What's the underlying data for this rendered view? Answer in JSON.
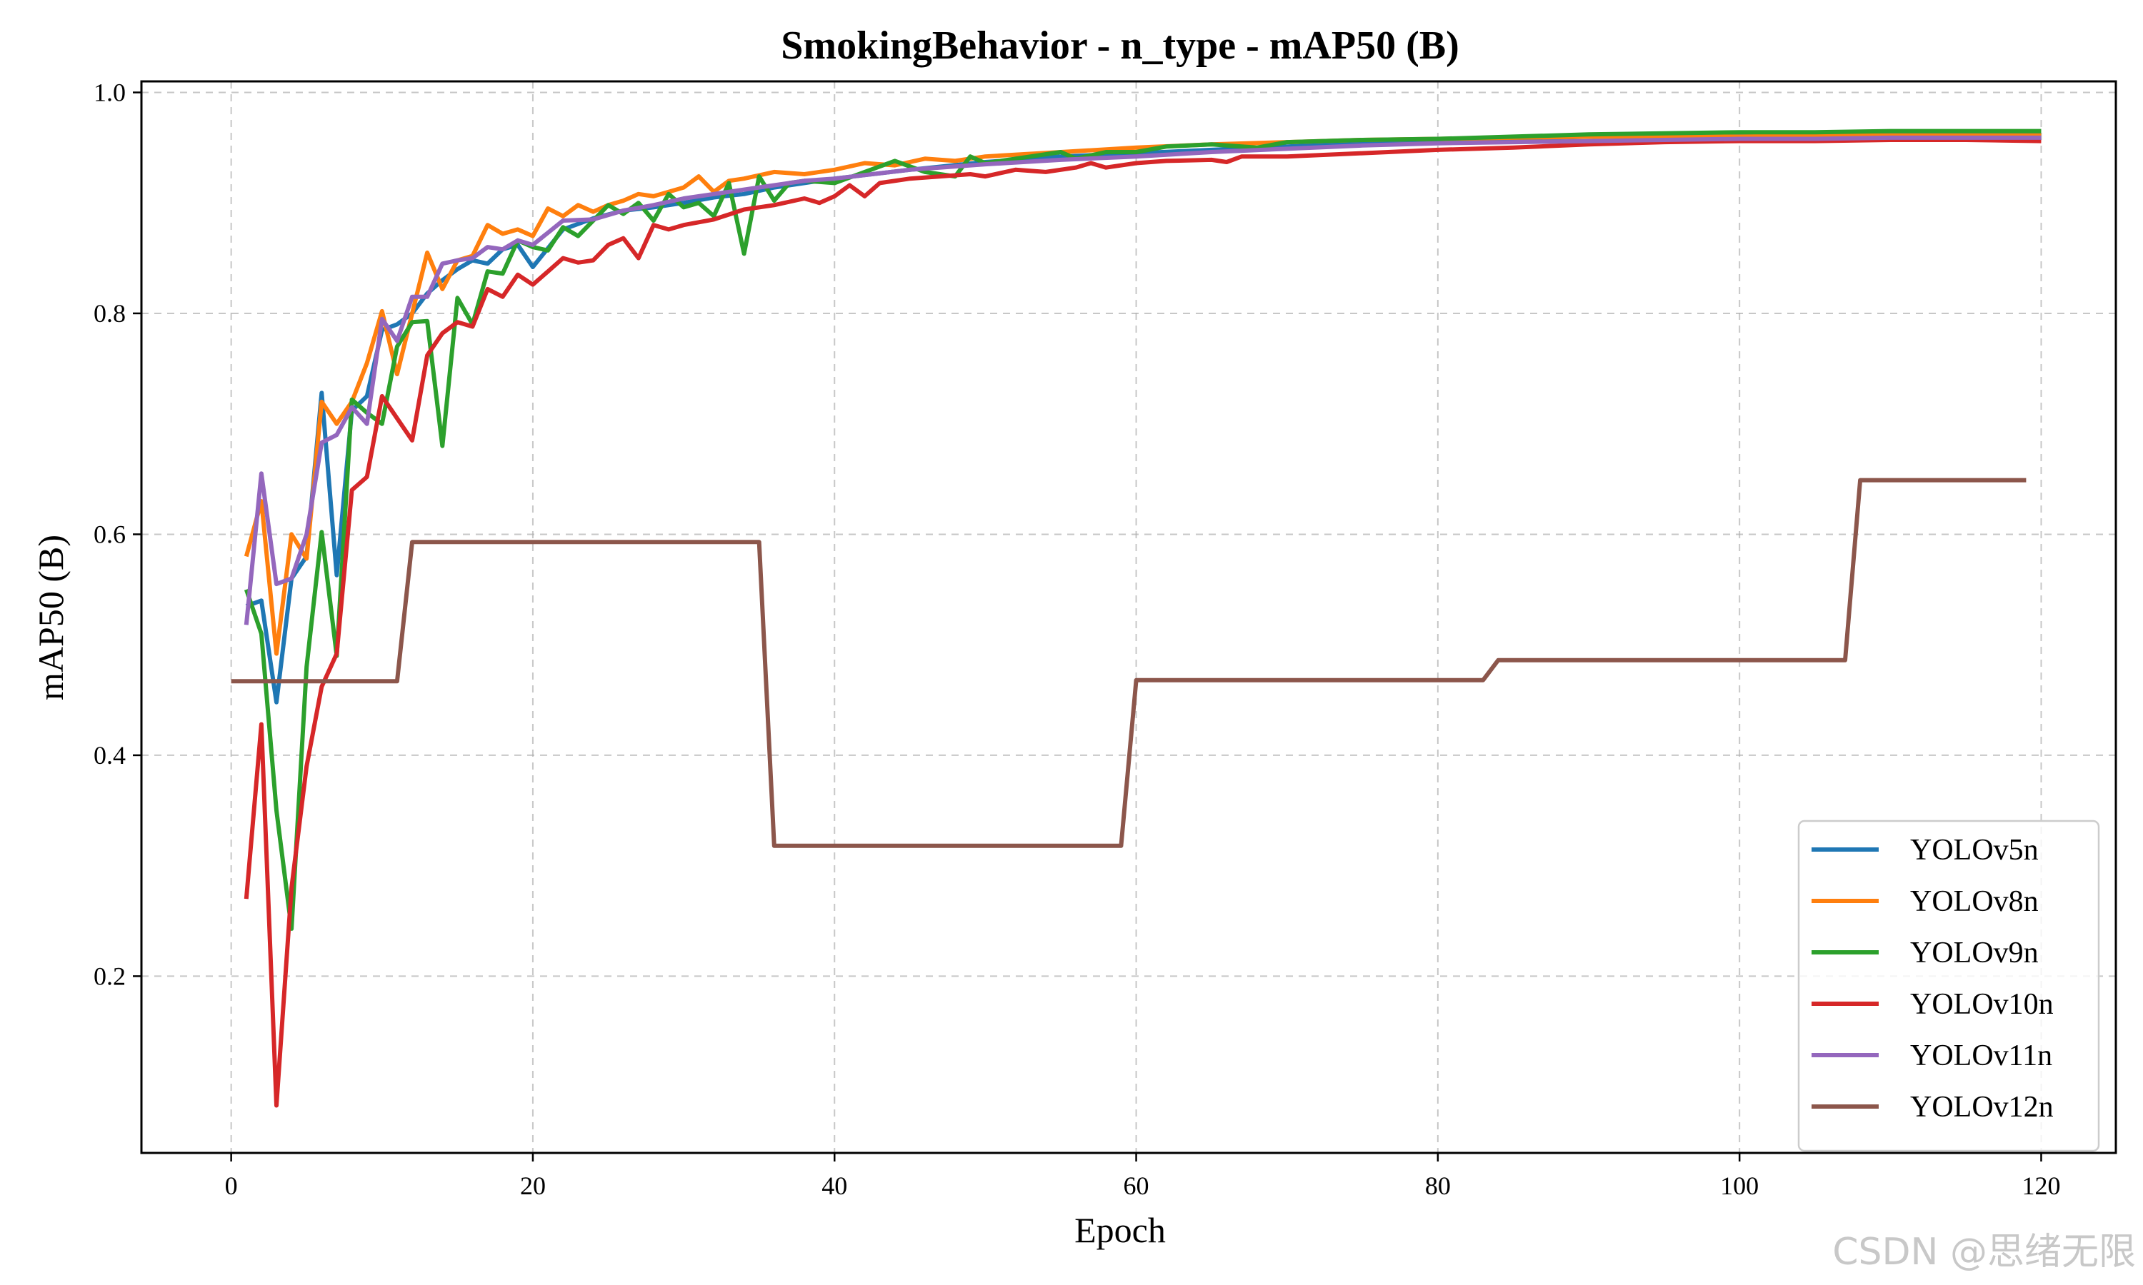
{
  "watermark": "CSDN @思绪无限",
  "chart_data": {
    "type": "line",
    "title": "SmokingBehavior - n_type - mAP50 (B)",
    "xlabel": "Epoch",
    "ylabel": "mAP50 (B)",
    "xlim": [
      -5.95,
      124.95
    ],
    "ylim": [
      0.04,
      1.01
    ],
    "xticks": [
      0,
      20,
      40,
      60,
      80,
      100,
      120
    ],
    "yticks": [
      0.2,
      0.4,
      0.6,
      0.8,
      1.0
    ],
    "grid": true,
    "legend_position": "lower-right",
    "series": [
      {
        "name": "YOLOv5n",
        "color": "#1f77b4",
        "points": [
          [
            1,
            0.535
          ],
          [
            2,
            0.54
          ],
          [
            3,
            0.448
          ],
          [
            4,
            0.56
          ],
          [
            5,
            0.58
          ],
          [
            6,
            0.728
          ],
          [
            7,
            0.563
          ],
          [
            8,
            0.712
          ],
          [
            9,
            0.725
          ],
          [
            10,
            0.785
          ],
          [
            11,
            0.79
          ],
          [
            12,
            0.8
          ],
          [
            13,
            0.818
          ],
          [
            14,
            0.83
          ],
          [
            15,
            0.84
          ],
          [
            16,
            0.848
          ],
          [
            17,
            0.845
          ],
          [
            18,
            0.858
          ],
          [
            19,
            0.862
          ],
          [
            20,
            0.842
          ],
          [
            22,
            0.876
          ],
          [
            24,
            0.886
          ],
          [
            26,
            0.893
          ],
          [
            28,
            0.896
          ],
          [
            30,
            0.9
          ],
          [
            32,
            0.905
          ],
          [
            34,
            0.908
          ],
          [
            36,
            0.914
          ],
          [
            38,
            0.918
          ],
          [
            40,
            0.922
          ],
          [
            45,
            0.93
          ],
          [
            50,
            0.937
          ],
          [
            55,
            0.942
          ],
          [
            60,
            0.945
          ],
          [
            65,
            0.948
          ],
          [
            70,
            0.951
          ],
          [
            75,
            0.954
          ],
          [
            80,
            0.956
          ],
          [
            85,
            0.958
          ],
          [
            90,
            0.96
          ],
          [
            95,
            0.961
          ],
          [
            100,
            0.962
          ],
          [
            105,
            0.962
          ],
          [
            110,
            0.963
          ],
          [
            115,
            0.963
          ],
          [
            120,
            0.963
          ]
        ]
      },
      {
        "name": "YOLOv8n",
        "color": "#ff7f0e",
        "points": [
          [
            1,
            0.58
          ],
          [
            2,
            0.63
          ],
          [
            3,
            0.492
          ],
          [
            4,
            0.6
          ],
          [
            5,
            0.578
          ],
          [
            6,
            0.72
          ],
          [
            7,
            0.7
          ],
          [
            8,
            0.72
          ],
          [
            9,
            0.755
          ],
          [
            10,
            0.802
          ],
          [
            11,
            0.745
          ],
          [
            12,
            0.8
          ],
          [
            13,
            0.855
          ],
          [
            14,
            0.822
          ],
          [
            15,
            0.848
          ],
          [
            16,
            0.852
          ],
          [
            17,
            0.88
          ],
          [
            18,
            0.872
          ],
          [
            19,
            0.876
          ],
          [
            20,
            0.87
          ],
          [
            21,
            0.895
          ],
          [
            22,
            0.888
          ],
          [
            23,
            0.898
          ],
          [
            24,
            0.892
          ],
          [
            25,
            0.898
          ],
          [
            26,
            0.902
          ],
          [
            27,
            0.908
          ],
          [
            28,
            0.906
          ],
          [
            30,
            0.914
          ],
          [
            31,
            0.924
          ],
          [
            32,
            0.91
          ],
          [
            33,
            0.92
          ],
          [
            34,
            0.922
          ],
          [
            36,
            0.928
          ],
          [
            38,
            0.926
          ],
          [
            40,
            0.93
          ],
          [
            42,
            0.936
          ],
          [
            44,
            0.934
          ],
          [
            46,
            0.94
          ],
          [
            48,
            0.938
          ],
          [
            50,
            0.942
          ],
          [
            55,
            0.946
          ],
          [
            60,
            0.95
          ],
          [
            65,
            0.953
          ],
          [
            70,
            0.955
          ],
          [
            75,
            0.957
          ],
          [
            80,
            0.958
          ],
          [
            85,
            0.959
          ],
          [
            90,
            0.96
          ],
          [
            95,
            0.96
          ],
          [
            100,
            0.96
          ],
          [
            105,
            0.961
          ],
          [
            110,
            0.961
          ],
          [
            115,
            0.961
          ],
          [
            120,
            0.961
          ]
        ]
      },
      {
        "name": "YOLOv9n",
        "color": "#2ca02c",
        "points": [
          [
            1,
            0.55
          ],
          [
            2,
            0.51
          ],
          [
            3,
            0.35
          ],
          [
            4,
            0.243
          ],
          [
            5,
            0.48
          ],
          [
            6,
            0.602
          ],
          [
            7,
            0.49
          ],
          [
            8,
            0.722
          ],
          [
            9,
            0.71
          ],
          [
            10,
            0.7
          ],
          [
            11,
            0.77
          ],
          [
            12,
            0.792
          ],
          [
            13,
            0.793
          ],
          [
            14,
            0.68
          ],
          [
            15,
            0.814
          ],
          [
            16,
            0.79
          ],
          [
            17,
            0.838
          ],
          [
            18,
            0.836
          ],
          [
            19,
            0.866
          ],
          [
            20,
            0.86
          ],
          [
            21,
            0.857
          ],
          [
            22,
            0.878
          ],
          [
            23,
            0.87
          ],
          [
            24,
            0.884
          ],
          [
            25,
            0.898
          ],
          [
            26,
            0.89
          ],
          [
            27,
            0.9
          ],
          [
            28,
            0.884
          ],
          [
            29,
            0.908
          ],
          [
            30,
            0.896
          ],
          [
            31,
            0.9
          ],
          [
            32,
            0.888
          ],
          [
            33,
            0.918
          ],
          [
            34,
            0.854
          ],
          [
            35,
            0.924
          ],
          [
            36,
            0.902
          ],
          [
            37,
            0.918
          ],
          [
            38,
            0.92
          ],
          [
            40,
            0.918
          ],
          [
            42,
            0.928
          ],
          [
            44,
            0.938
          ],
          [
            46,
            0.928
          ],
          [
            48,
            0.924
          ],
          [
            49,
            0.942
          ],
          [
            50,
            0.936
          ],
          [
            52,
            0.94
          ],
          [
            55,
            0.946
          ],
          [
            56,
            0.94
          ],
          [
            58,
            0.946
          ],
          [
            60,
            0.946
          ],
          [
            62,
            0.951
          ],
          [
            65,
            0.953
          ],
          [
            68,
            0.95
          ],
          [
            70,
            0.955
          ],
          [
            75,
            0.957
          ],
          [
            80,
            0.958
          ],
          [
            85,
            0.96
          ],
          [
            90,
            0.962
          ],
          [
            95,
            0.963
          ],
          [
            100,
            0.964
          ],
          [
            105,
            0.964
          ],
          [
            110,
            0.965
          ],
          [
            115,
            0.965
          ],
          [
            120,
            0.965
          ]
        ]
      },
      {
        "name": "YOLOv10n",
        "color": "#d62728",
        "points": [
          [
            1,
            0.27
          ],
          [
            2,
            0.428
          ],
          [
            3,
            0.083
          ],
          [
            4,
            0.28
          ],
          [
            5,
            0.39
          ],
          [
            6,
            0.462
          ],
          [
            7,
            0.492
          ],
          [
            8,
            0.64
          ],
          [
            9,
            0.652
          ],
          [
            10,
            0.725
          ],
          [
            11,
            0.705
          ],
          [
            12,
            0.685
          ],
          [
            13,
            0.762
          ],
          [
            14,
            0.782
          ],
          [
            15,
            0.792
          ],
          [
            16,
            0.788
          ],
          [
            17,
            0.822
          ],
          [
            18,
            0.815
          ],
          [
            19,
            0.835
          ],
          [
            20,
            0.826
          ],
          [
            21,
            0.838
          ],
          [
            22,
            0.85
          ],
          [
            23,
            0.846
          ],
          [
            24,
            0.848
          ],
          [
            25,
            0.862
          ],
          [
            26,
            0.868
          ],
          [
            27,
            0.85
          ],
          [
            28,
            0.88
          ],
          [
            29,
            0.876
          ],
          [
            30,
            0.88
          ],
          [
            32,
            0.885
          ],
          [
            34,
            0.894
          ],
          [
            36,
            0.898
          ],
          [
            38,
            0.904
          ],
          [
            39,
            0.9
          ],
          [
            40,
            0.906
          ],
          [
            41,
            0.916
          ],
          [
            42,
            0.906
          ],
          [
            43,
            0.918
          ],
          [
            45,
            0.922
          ],
          [
            47,
            0.924
          ],
          [
            49,
            0.926
          ],
          [
            50,
            0.924
          ],
          [
            52,
            0.93
          ],
          [
            54,
            0.928
          ],
          [
            56,
            0.932
          ],
          [
            57,
            0.936
          ],
          [
            58,
            0.932
          ],
          [
            60,
            0.936
          ],
          [
            62,
            0.938
          ],
          [
            65,
            0.939
          ],
          [
            66,
            0.937
          ],
          [
            67,
            0.942
          ],
          [
            70,
            0.942
          ],
          [
            75,
            0.945
          ],
          [
            80,
            0.948
          ],
          [
            85,
            0.95
          ],
          [
            90,
            0.953
          ],
          [
            95,
            0.955
          ],
          [
            100,
            0.956
          ],
          [
            105,
            0.956
          ],
          [
            110,
            0.957
          ],
          [
            115,
            0.957
          ],
          [
            120,
            0.956
          ]
        ]
      },
      {
        "name": "YOLOv11n",
        "color": "#9467bd",
        "points": [
          [
            1,
            0.518
          ],
          [
            2,
            0.655
          ],
          [
            3,
            0.555
          ],
          [
            4,
            0.56
          ],
          [
            5,
            0.6
          ],
          [
            6,
            0.683
          ],
          [
            7,
            0.69
          ],
          [
            8,
            0.715
          ],
          [
            9,
            0.7
          ],
          [
            10,
            0.795
          ],
          [
            11,
            0.775
          ],
          [
            12,
            0.815
          ],
          [
            13,
            0.815
          ],
          [
            14,
            0.845
          ],
          [
            15,
            0.848
          ],
          [
            16,
            0.85
          ],
          [
            17,
            0.86
          ],
          [
            18,
            0.858
          ],
          [
            19,
            0.866
          ],
          [
            20,
            0.862
          ],
          [
            22,
            0.884
          ],
          [
            24,
            0.885
          ],
          [
            26,
            0.893
          ],
          [
            28,
            0.898
          ],
          [
            30,
            0.904
          ],
          [
            32,
            0.908
          ],
          [
            34,
            0.912
          ],
          [
            36,
            0.916
          ],
          [
            38,
            0.92
          ],
          [
            40,
            0.922
          ],
          [
            45,
            0.93
          ],
          [
            50,
            0.935
          ],
          [
            55,
            0.939
          ],
          [
            60,
            0.942
          ],
          [
            65,
            0.946
          ],
          [
            70,
            0.949
          ],
          [
            75,
            0.952
          ],
          [
            80,
            0.954
          ],
          [
            85,
            0.955
          ],
          [
            90,
            0.956
          ],
          [
            95,
            0.957
          ],
          [
            100,
            0.958
          ],
          [
            105,
            0.958
          ],
          [
            110,
            0.959
          ],
          [
            115,
            0.959
          ],
          [
            120,
            0.959
          ]
        ]
      },
      {
        "name": "YOLOv12n",
        "color": "#8c564b",
        "points": [
          [
            0,
            0.467
          ],
          [
            11,
            0.467
          ],
          [
            12,
            0.593
          ],
          [
            35,
            0.593
          ],
          [
            36,
            0.318
          ],
          [
            59,
            0.318
          ],
          [
            60,
            0.468
          ],
          [
            83,
            0.468
          ],
          [
            84,
            0.486
          ],
          [
            107,
            0.486
          ],
          [
            108,
            0.649
          ],
          [
            119,
            0.649
          ]
        ]
      }
    ]
  }
}
